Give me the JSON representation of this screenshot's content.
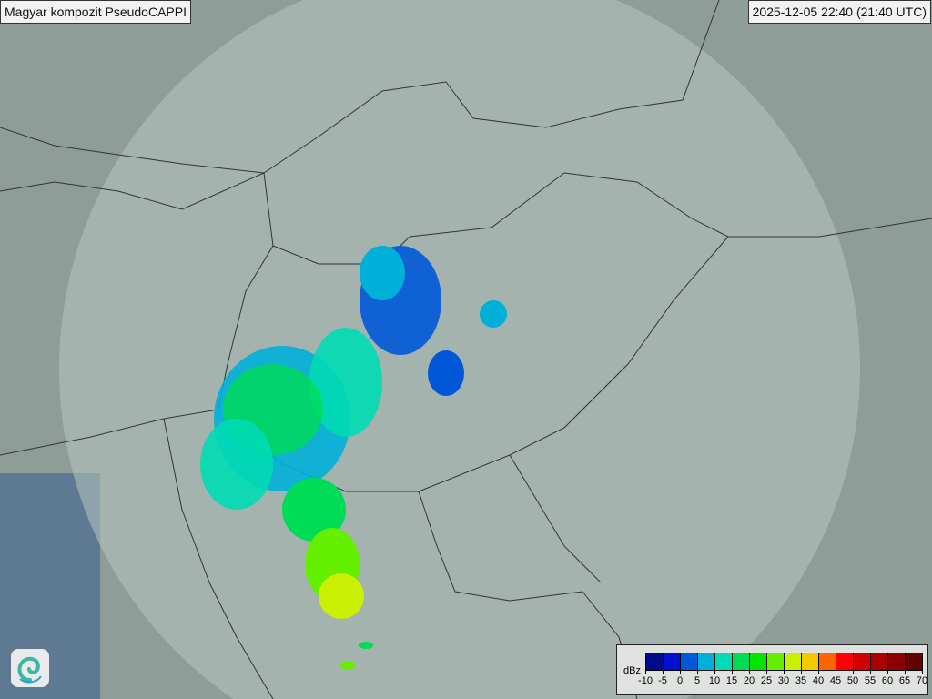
{
  "header": {
    "title": "Magyar kompozit  PseudoCAPPI",
    "timestamp": "2025-12-05 22:40 (21:40 UTC)"
  },
  "legend": {
    "unit": "dBz",
    "ticks": [
      "-10",
      "-5",
      "0",
      "5",
      "10",
      "15",
      "20",
      "25",
      "30",
      "35",
      "40",
      "45",
      "50",
      "55",
      "60",
      "65",
      "70"
    ],
    "colors": [
      "#000a8c",
      "#0010d2",
      "#0058d8",
      "#00b0d8",
      "#00dcb4",
      "#00dc55",
      "#00e600",
      "#64ef00",
      "#c8f000",
      "#f5c800",
      "#ff6400",
      "#ff0000",
      "#d20000",
      "#aa0000",
      "#8c0000",
      "#640000"
    ]
  },
  "logo": {
    "icon": "swirl-logo-icon"
  }
}
